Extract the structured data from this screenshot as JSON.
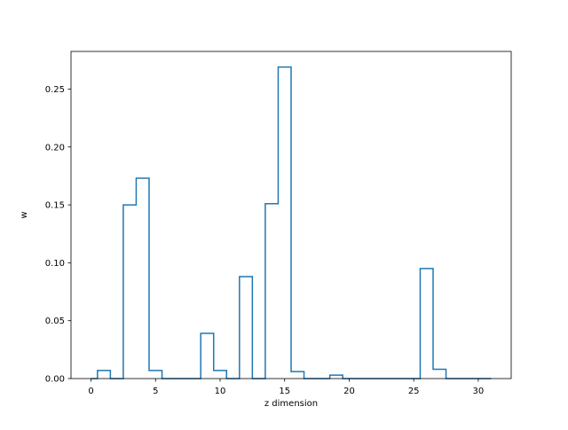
{
  "chart_data": {
    "type": "line",
    "drawstyle": "steps-mid",
    "xlabel": "z dimension",
    "ylabel": "w",
    "xlim": [
      -1.55,
      32.55
    ],
    "ylim": [
      0,
      0.2825
    ],
    "xticks": [
      0,
      5,
      10,
      15,
      20,
      25,
      30
    ],
    "xtick_labels": [
      "0",
      "5",
      "10",
      "15",
      "20",
      "25",
      "30"
    ],
    "yticks": [
      0.0,
      0.05,
      0.1,
      0.15,
      0.2,
      0.25
    ],
    "ytick_labels": [
      "0.00",
      "0.05",
      "0.10",
      "0.15",
      "0.20",
      "0.25"
    ],
    "grid": false,
    "series": [
      {
        "color": "#1f77b4",
        "x": [
          0,
          1,
          2,
          3,
          4,
          5,
          6,
          7,
          8,
          9,
          10,
          11,
          12,
          13,
          14,
          15,
          16,
          17,
          18,
          19,
          20,
          21,
          22,
          23,
          24,
          25,
          26,
          27,
          28,
          29,
          30,
          31
        ],
        "y": [
          0.0,
          0.007,
          0.0,
          0.15,
          0.173,
          0.007,
          0.0,
          0.0,
          0.0,
          0.039,
          0.007,
          0.0,
          0.088,
          0.0,
          0.151,
          0.269,
          0.006,
          0.0,
          0.0,
          0.003,
          0.0,
          0.0,
          0.0,
          0.0,
          0.0,
          0.0,
          0.095,
          0.008,
          0.0,
          0.0,
          0.0,
          0.0
        ]
      }
    ]
  }
}
